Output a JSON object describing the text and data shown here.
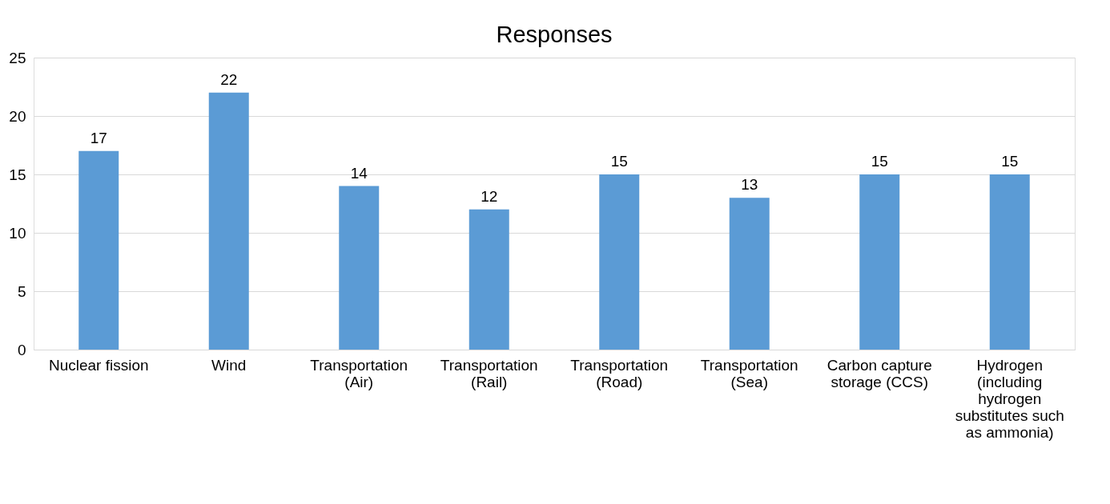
{
  "chart_data": {
    "type": "bar",
    "title": "Responses",
    "categories": [
      "Nuclear fission",
      "Wind",
      "Transportation (Air)",
      "Transportation (Rail)",
      "Transportation (Road)",
      "Transportation (Sea)",
      "Carbon capture storage (CCS)",
      "Hydrogen (including hydrogen substitutes such as ammonia)"
    ],
    "values": [
      17,
      22,
      14,
      12,
      15,
      13,
      15,
      15
    ],
    "color": "#5b9bd5",
    "ylim": [
      0,
      25
    ],
    "yticks": [
      0,
      5,
      10,
      15,
      20,
      25
    ],
    "grid": "y",
    "data_labels": true
  }
}
